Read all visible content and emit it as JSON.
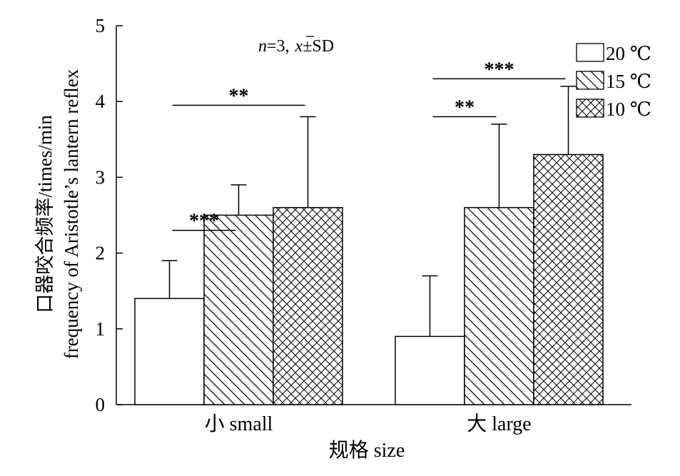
{
  "chart_data": {
    "type": "bar",
    "title": "",
    "annotation_n": "n",
    "annotation_rest": "=3,",
    "annotation_mean": "x",
    "annotation_sd": "±SD",
    "xlabel": "规格 size",
    "ylabel_line1": "口器咬合频率/times/min",
    "ylabel_line2": "frequency of Aristotle’s lantern reflex",
    "ylim": [
      0,
      5
    ],
    "yticks": [
      0,
      1,
      2,
      3,
      4,
      5
    ],
    "categories": [
      "小 small",
      "大 large"
    ],
    "legend_position": "top-right",
    "grid": false,
    "series": [
      {
        "name": "20 ℃",
        "pattern": "none",
        "values": [
          1.4,
          0.9
        ],
        "errors": [
          0.5,
          0.8
        ]
      },
      {
        "name": "15 ℃",
        "pattern": "hatch",
        "values": [
          2.5,
          2.6
        ],
        "errors": [
          0.4,
          1.1
        ]
      },
      {
        "name": "10 ℃",
        "pattern": "crosshatch",
        "values": [
          2.6,
          3.3
        ],
        "errors": [
          1.2,
          0.9
        ]
      }
    ],
    "significance": [
      {
        "group": 0,
        "from_series": 0,
        "to_series": 1,
        "level": 2.3,
        "label": "***"
      },
      {
        "group": 0,
        "from_series": 0,
        "to_series": 2,
        "level": 3.95,
        "label": "**"
      },
      {
        "group": 1,
        "from_series": 0,
        "to_series": 1,
        "level": 3.8,
        "label": "**"
      },
      {
        "group": 1,
        "from_series": 0,
        "to_series": 2,
        "level": 4.3,
        "label": "***"
      }
    ]
  }
}
